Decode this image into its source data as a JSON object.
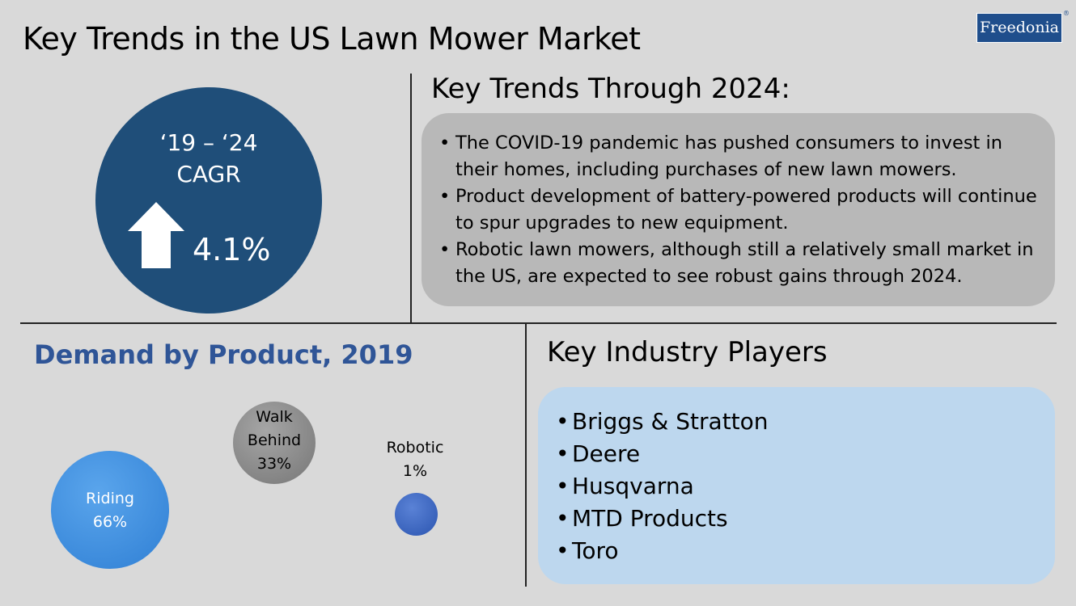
{
  "header": {
    "title": "Key Trends in the US Lawn Mower Market",
    "logo_text": "Freedonia",
    "logo_mark": "®"
  },
  "cagr": {
    "period": "‘19 – ‘24",
    "label": "CAGR",
    "value": "4.1%",
    "direction_icon": "up-arrow-icon"
  },
  "trends": {
    "heading": "Key Trends Through 2024:",
    "items": [
      "The COVID-19 pandemic has pushed consumers to invest in their homes, including purchases of new lawn mowers.",
      "Product development of battery-powered products will continue to spur upgrades to new equipment.",
      "Robotic lawn mowers, although still a relatively small market in the US, are expected to see robust gains through 2024."
    ]
  },
  "demand": {
    "heading": "Demand by Product, 2019",
    "segments": [
      {
        "name": "Riding",
        "share": "66%"
      },
      {
        "name_line1": "Walk",
        "name_line2": "Behind",
        "share": "33%"
      },
      {
        "name": "Robotic",
        "share": "1%"
      }
    ]
  },
  "players": {
    "heading": "Key Industry Players",
    "items": [
      "Briggs & Stratton",
      "Deere",
      "Husqvarna",
      "MTD Products",
      "Toro"
    ]
  },
  "colors": {
    "background": "#d9d9d9",
    "cagr_circle": "#1f4e79",
    "demand_heading": "#2f5597",
    "trends_box": "#b8b8b8",
    "players_box": "#bdd7ee",
    "riding_bubble": "#3f8fdf",
    "walk_bubble": "#8c8c8c",
    "robotic_bubble": "#3a66c4"
  }
}
